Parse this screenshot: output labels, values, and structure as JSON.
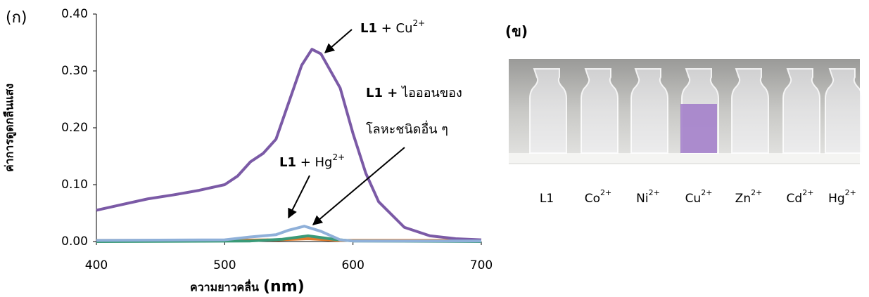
{
  "chart_data": {
    "type": "line",
    "panel_label": "(ก)",
    "ylabel": "ค่าการดูดกลืนแสง",
    "xlabel": "ความยาวคลื่น",
    "xlabel_unit": "(nm)",
    "xlim": [
      400,
      700
    ],
    "xticks": [
      400,
      500,
      600,
      700
    ],
    "ylim": [
      0,
      0.4
    ],
    "yticks": [
      {
        "value": 0,
        "label": "0.00"
      },
      {
        "value": 0.1,
        "label": "0.10"
      },
      {
        "value": 0.2,
        "label": "0.20"
      },
      {
        "value": 0.3,
        "label": "0.30"
      },
      {
        "value": 0.4,
        "label": "0.40"
      }
    ],
    "series": [
      {
        "color": "#e07a2c",
        "x": [
          400,
          500,
          540,
          565,
          590,
          700
        ],
        "values": [
          0.002,
          0.002,
          0.003,
          0.005,
          0.002,
          0.002
        ]
      },
      {
        "color": "#3a9a78",
        "x": [
          400,
          520,
          545,
          565,
          585,
          600,
          700
        ],
        "values": [
          0,
          0.001,
          0.004,
          0.01,
          0.004,
          0.001,
          0
        ]
      },
      {
        "color": "#7b5aa6",
        "x": [
          400,
          420,
          440,
          460,
          480,
          500,
          510,
          520,
          530,
          540,
          550,
          560,
          568,
          575,
          590,
          600,
          610,
          620,
          640,
          660,
          680,
          700
        ],
        "values": [
          0.055,
          0.065,
          0.075,
          0.082,
          0.09,
          0.1,
          0.115,
          0.14,
          0.155,
          0.18,
          0.245,
          0.31,
          0.338,
          0.33,
          0.27,
          0.19,
          0.12,
          0.07,
          0.025,
          0.01,
          0.005,
          0.003
        ]
      },
      {
        "color": "#8fb0d9",
        "x": [
          400,
          500,
          520,
          540,
          550,
          562,
          575,
          590,
          600,
          700
        ],
        "values": [
          0.002,
          0.003,
          0.008,
          0.012,
          0.02,
          0.027,
          0.018,
          0.003,
          0.001,
          0.001
        ]
      }
    ],
    "annotations": [
      {
        "bold": "L1",
        "text": " + Cu",
        "sup": "2+"
      },
      {
        "bold": "L1 +",
        "text": " ไอออนของ"
      },
      {
        "text": "โลหะชนิดอื่น ๆ"
      },
      {
        "bold": "L1",
        "text": " + Hg",
        "sup": "2+"
      }
    ]
  },
  "photo": {
    "panel_label": "(ข)",
    "vials": [
      {
        "name": "L1"
      },
      {
        "name": "Co",
        "charge": "2+"
      },
      {
        "name": "Ni",
        "charge": "2+"
      },
      {
        "name": "Cu",
        "charge": "2+"
      },
      {
        "name": "Zn",
        "charge": "2+"
      },
      {
        "name": "Cd",
        "charge": "2+"
      },
      {
        "name": "Hg",
        "charge": "2+"
      }
    ]
  }
}
